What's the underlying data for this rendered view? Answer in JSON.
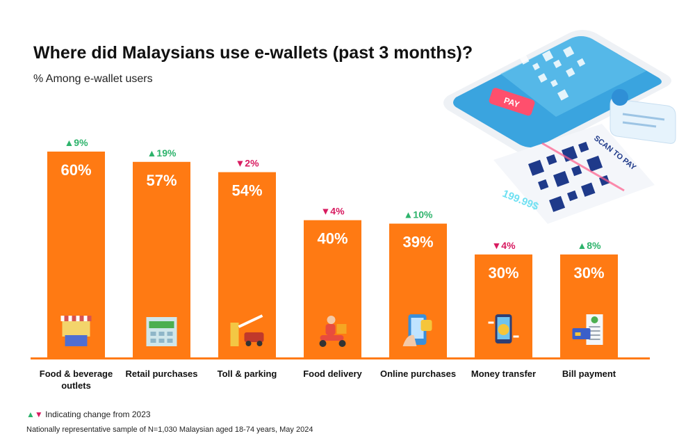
{
  "chart_data": {
    "type": "bar",
    "title": "Where did Malaysians use e-wallets (past 3 months)?",
    "subtitle": "% Among e-wallet users",
    "categories": [
      "Food & beverage outlets",
      "Retail purchases",
      "Toll & parking",
      "Food delivery",
      "Online purchases",
      "Money transfer",
      "Bill payment"
    ],
    "category_lines": [
      [
        "Food & beverage",
        "outlets"
      ],
      [
        "Retail purchases"
      ],
      [
        "Toll & parking"
      ],
      [
        "Food delivery"
      ],
      [
        "Online purchases"
      ],
      [
        "Money transfer"
      ],
      [
        "Bill payment"
      ]
    ],
    "values": [
      60,
      57,
      54,
      40,
      39,
      30,
      30
    ],
    "value_labels": [
      "60%",
      "57%",
      "54%",
      "40%",
      "39%",
      "30%",
      "30%"
    ],
    "change": [
      {
        "direction": "up",
        "label": "9%"
      },
      {
        "direction": "up",
        "label": "19%"
      },
      {
        "direction": "down",
        "label": "2%"
      },
      {
        "direction": "down",
        "label": "4%"
      },
      {
        "direction": "up",
        "label": "10%"
      },
      {
        "direction": "down",
        "label": "4%"
      },
      {
        "direction": "up",
        "label": "8%"
      }
    ],
    "icons": [
      "storefront-icon",
      "mall-icon",
      "toll-gate-icon",
      "delivery-scooter-icon",
      "mobile-shopping-icon",
      "money-transfer-icon",
      "bill-icon"
    ],
    "ylim": [
      0,
      60
    ],
    "xlabel": "",
    "ylabel": "",
    "grid": false,
    "legend": "none"
  },
  "legend": {
    "up_symbol": "▲",
    "down_symbol": "▼",
    "text": "Indicating change from 2023"
  },
  "footnote": "Nationally representative sample of N=1,030 Malaysian aged 18-74 years, May 2024",
  "illustration": {
    "pay_label": "PAY",
    "scan_label": "SCAN TO PAY",
    "amount": "199.99$"
  },
  "colors": {
    "bar": "#ff7a13",
    "up": "#2db36b",
    "down": "#d81b60",
    "baseline": "#ff7a13"
  }
}
